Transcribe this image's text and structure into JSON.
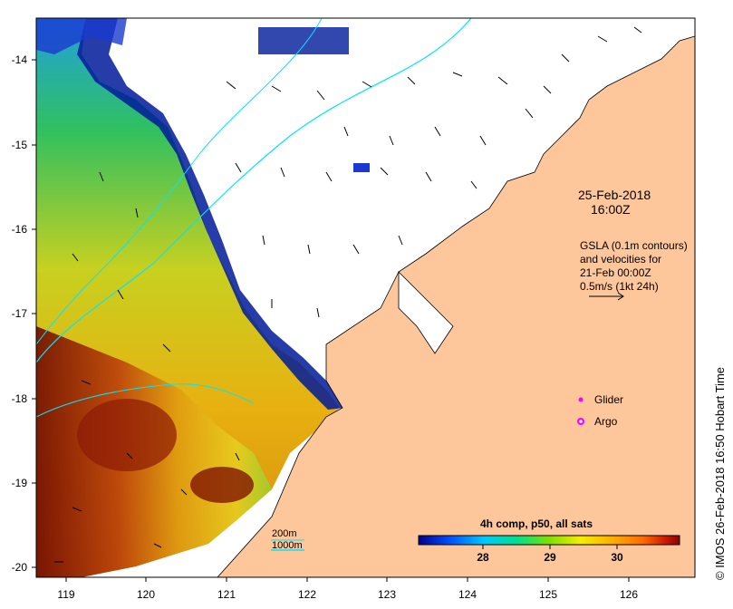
{
  "map": {
    "x_ticks": [
      "119",
      "120",
      "121",
      "122",
      "123",
      "124",
      "125",
      "126"
    ],
    "y_ticks": [
      "-14",
      "-15",
      "-16",
      "-17",
      "-18",
      "-19",
      "-20"
    ],
    "date": "25-Feb-2018",
    "time": "16:00Z",
    "gsla_lines": [
      "GSLA (0.1m contours)",
      "and velocities for",
      "21-Feb 00:00Z",
      "0.5m/s (1kt 24h)"
    ],
    "legend": {
      "glider": "Glider",
      "argo": "Argo"
    },
    "isobaths": {
      "shallow": "200m",
      "deep": "1000m"
    },
    "colorbar": {
      "title": "4h comp, p50, all sats",
      "labels": [
        "28",
        "29",
        "30"
      ],
      "colors": [
        "#00008b",
        "#0050ff",
        "#00c8ff",
        "#00e08a",
        "#7ee000",
        "#f2f000",
        "#ffb000",
        "#ff6a00",
        "#d21e00",
        "#8b0000"
      ]
    },
    "credit": "© IMOS 26-Feb-2018 16:50 Hobart Time",
    "colors": {
      "land": "#fdc79b",
      "glider": "#ff00ff",
      "argo": "#ff00ff",
      "isobath": "#00e5ff"
    }
  }
}
